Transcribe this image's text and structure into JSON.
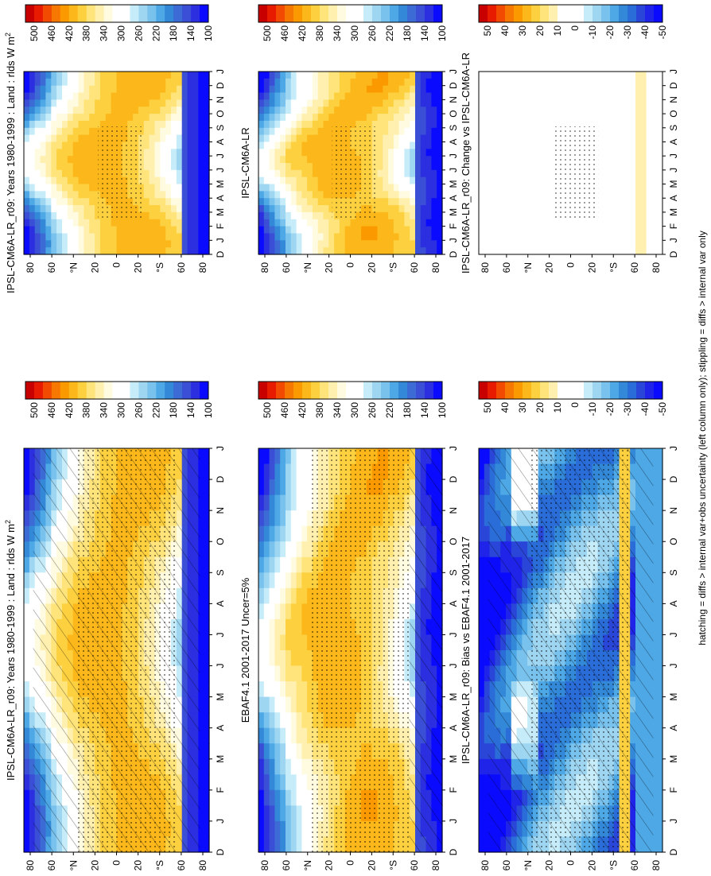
{
  "footnote": "hatching = diffs > internal var+obs uncertainty (left column only); stippling = diffs > internal var only",
  "month_ticks": [
    "D",
    "J",
    "F",
    "M",
    "A",
    "M",
    "J",
    "J",
    "A",
    "S",
    "O",
    "N",
    "D",
    "J"
  ],
  "lat_ticks": [
    "80",
    "60",
    "°N",
    "20",
    "0",
    "20",
    "°S",
    "60",
    "80"
  ],
  "absolute_scale": {
    "labels": [
      "500",
      "460",
      "420",
      "380",
      "340",
      "300",
      "260",
      "220",
      "180",
      "140",
      "100"
    ],
    "colors": [
      "#c80000",
      "#e81a00",
      "#f24a00",
      "#f77800",
      "#fa9a00",
      "#fcb81a",
      "#fdd040",
      "#fee47a",
      "#fff0b0",
      "#fffbe0",
      "#ffffff",
      "#ffffff",
      "#c6ecf9",
      "#9ed6f2",
      "#79c2ed",
      "#4ea8e6",
      "#3388d8",
      "#3c6bd5",
      "#3a4ed6",
      "#2b2fe0",
      "#0a0aff"
    ]
  },
  "difference_scale": {
    "labels": [
      "50",
      "40",
      "30",
      "20",
      "10",
      "0",
      "-10",
      "-20",
      "-30",
      "-40",
      "-50"
    ],
    "colors": [
      "#c80000",
      "#e81a00",
      "#f24a00",
      "#f77800",
      "#fa9a00",
      "#fcb81a",
      "#fdd040",
      "#fee47a",
      "#fff0b0",
      "#ffffff",
      "#ffffff",
      "#ffffff",
      "#c6ecf9",
      "#9ed6f2",
      "#79c2ed",
      "#4ea8e6",
      "#3388d8",
      "#2a6cd8",
      "#2a46d8",
      "#1f24e8",
      "#0a0aff"
    ]
  },
  "chart_data": [
    {
      "type": "heatmap",
      "title": "IPSL-CM6A-LR_r09: Years 1980-1999 : Land : rlds W m-2",
      "x": "month (D..J)",
      "y": "latitude (80N..80S)",
      "colorbar": "absolute_scale",
      "zlim": [
        100,
        500
      ],
      "hatching": true,
      "stippling": true
    },
    {
      "type": "heatmap",
      "title": "IPSL-CM6A-LR_r09: Years 1980-1999 : Land : rlds W m-2",
      "x": "month (D..J)",
      "y": "latitude (80N..80S)",
      "colorbar": "absolute_scale",
      "zlim": [
        100,
        500
      ],
      "hatching": false,
      "stippling": true
    },
    {
      "type": "heatmap",
      "title": "EBAF4.1 2001-2017 Uncer=5%",
      "x": "month (D..J)",
      "y": "latitude (80N..80S)",
      "colorbar": "absolute_scale",
      "zlim": [
        100,
        500
      ],
      "hatching": true,
      "stippling": true
    },
    {
      "type": "heatmap",
      "title": "IPSL-CM6A-LR",
      "x": "month (D..J)",
      "y": "latitude (80N..80S)",
      "colorbar": "absolute_scale",
      "zlim": [
        100,
        500
      ],
      "hatching": false,
      "stippling": true
    },
    {
      "type": "heatmap",
      "title": "IPSL-CM6A-LR_r09: Bias vs EBAF4.1 2001-2017",
      "x": "month (D..J)",
      "y": "latitude (80N..80S)",
      "colorbar": "difference_scale",
      "zlim": [
        -50,
        50
      ],
      "hatching": true,
      "stippling": true
    },
    {
      "type": "heatmap",
      "title": "IPSL-CM6A-LR_r09: Change vs IPSL-CM6A-LR",
      "x": "month (D..J)",
      "y": "latitude (80N..80S)",
      "colorbar": "difference_scale",
      "zlim": [
        -50,
        50
      ],
      "hatching": false,
      "stippling": true
    }
  ],
  "panel_titles": {
    "p1": "IPSL-CM6A-LR_r09: Years 1980-1999 : Land : rlds W m",
    "p2": "IPSL-CM6A-LR_r09: Years 1980-1999 : Land : rlds W m",
    "p3": "EBAF4.1 2001-2017 Uncer=5%",
    "p4": "IPSL-CM6A-LR",
    "p5": "IPSL-CM6A-LR_r09: Bias vs EBAF4.1 2001-2017",
    "p6": "IPSL-CM6A-LR_r09: Change vs IPSL-CM6A-LR"
  },
  "units_sup": "2"
}
